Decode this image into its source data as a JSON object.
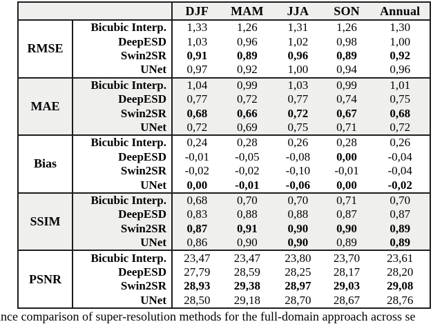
{
  "header": {
    "corner_label": "",
    "columns": [
      "DJF",
      "MAM",
      "JJA",
      "SON",
      "Annual"
    ]
  },
  "chart_data": {
    "type": "table",
    "title": "",
    "columns": [
      "DJF",
      "MAM",
      "JJA",
      "SON",
      "Annual"
    ],
    "metrics": [
      "RMSE",
      "MAE",
      "Bias",
      "SSIM",
      "PSNR"
    ],
    "methods": [
      "Bicubic Interp.",
      "DeepESD",
      "Swin2SR",
      "UNet"
    ]
  },
  "sections": [
    {
      "metric": "RMSE",
      "shaded": false,
      "rows": [
        {
          "method": "Bicubic Interp.",
          "values": [
            "1,33",
            "1,26",
            "1,31",
            "1,26",
            "1,30"
          ],
          "bold": [
            false,
            false,
            false,
            false,
            false
          ]
        },
        {
          "method": "DeepESD",
          "values": [
            "1,03",
            "0,96",
            "1,02",
            "0,98",
            "1,00"
          ],
          "bold": [
            false,
            false,
            false,
            false,
            false
          ]
        },
        {
          "method": "Swin2SR",
          "values": [
            "0,91",
            "0,89",
            "0,96",
            "0,89",
            "0,92"
          ],
          "bold": [
            true,
            true,
            true,
            true,
            true
          ]
        },
        {
          "method": "UNet",
          "values": [
            "0,97",
            "0,92",
            "1,00",
            "0,94",
            "0,96"
          ],
          "bold": [
            false,
            false,
            false,
            false,
            false
          ]
        }
      ]
    },
    {
      "metric": "MAE",
      "shaded": true,
      "rows": [
        {
          "method": "Bicubic Interp.",
          "values": [
            "1,04",
            "0,99",
            "1,03",
            "0,99",
            "1,01"
          ],
          "bold": [
            false,
            false,
            false,
            false,
            false
          ]
        },
        {
          "method": "DeepESD",
          "values": [
            "0,77",
            "0,72",
            "0,77",
            "0,74",
            "0,75"
          ],
          "bold": [
            false,
            false,
            false,
            false,
            false
          ]
        },
        {
          "method": "Swin2SR",
          "values": [
            "0,68",
            "0,66",
            "0,72",
            "0,67",
            "0,68"
          ],
          "bold": [
            true,
            true,
            true,
            true,
            true
          ]
        },
        {
          "method": "UNet",
          "values": [
            "0,72",
            "0,69",
            "0,75",
            "0,71",
            "0,72"
          ],
          "bold": [
            false,
            false,
            false,
            false,
            false
          ]
        }
      ]
    },
    {
      "metric": "Bias",
      "shaded": false,
      "rows": [
        {
          "method": "Bicubic Interp.",
          "values": [
            "0,24",
            "0,28",
            "0,26",
            "0,28",
            "0,26"
          ],
          "bold": [
            false,
            false,
            false,
            false,
            false
          ]
        },
        {
          "method": "DeepESD",
          "values": [
            "-0,01",
            "-0,05",
            "-0,08",
            "0,00",
            "-0,04"
          ],
          "bold": [
            false,
            false,
            false,
            true,
            false
          ]
        },
        {
          "method": "Swin2SR",
          "values": [
            "-0,02",
            "-0,02",
            "-0,10",
            "-0,01",
            "-0,04"
          ],
          "bold": [
            false,
            false,
            false,
            false,
            false
          ]
        },
        {
          "method": "UNet",
          "values": [
            "0,00",
            "-0,01",
            "-0,06",
            "0,00",
            "-0,02"
          ],
          "bold": [
            true,
            true,
            true,
            true,
            true
          ]
        }
      ]
    },
    {
      "metric": "SSIM",
      "shaded": true,
      "rows": [
        {
          "method": "Bicubic Interp.",
          "values": [
            "0,68",
            "0,70",
            "0,70",
            "0,71",
            "0,70"
          ],
          "bold": [
            false,
            false,
            false,
            false,
            false
          ]
        },
        {
          "method": "DeepESD",
          "values": [
            "0,83",
            "0,88",
            "0,88",
            "0,87",
            "0,87"
          ],
          "bold": [
            false,
            false,
            false,
            false,
            false
          ]
        },
        {
          "method": "Swin2SR",
          "values": [
            "0,87",
            "0,91",
            "0,90",
            "0,90",
            "0,89"
          ],
          "bold": [
            true,
            true,
            true,
            true,
            true
          ]
        },
        {
          "method": "UNet",
          "values": [
            "0,86",
            "0,90",
            "0,90",
            "0,89",
            "0,89"
          ],
          "bold": [
            false,
            false,
            true,
            false,
            true
          ]
        }
      ]
    },
    {
      "metric": "PSNR",
      "shaded": false,
      "rows": [
        {
          "method": "Bicubic Interp.",
          "values": [
            "23,47",
            "23,47",
            "23,80",
            "23,70",
            "23,61"
          ],
          "bold": [
            false,
            false,
            false,
            false,
            false
          ]
        },
        {
          "method": "DeepESD",
          "values": [
            "27,79",
            "28,59",
            "28,25",
            "28,17",
            "28,20"
          ],
          "bold": [
            false,
            false,
            false,
            false,
            false
          ]
        },
        {
          "method": "Swin2SR",
          "values": [
            "28,93",
            "29,38",
            "28,97",
            "29,03",
            "29,08"
          ],
          "bold": [
            true,
            true,
            true,
            true,
            true
          ]
        },
        {
          "method": "UNet",
          "values": [
            "28,50",
            "29,18",
            "28,70",
            "28,67",
            "28,76"
          ],
          "bold": [
            false,
            false,
            false,
            false,
            false
          ]
        }
      ]
    }
  ],
  "caption": "ance comparison of super-resolution methods for the full-domain approach across se",
  "colors": {
    "shaded_row_bg": "#efefee",
    "border": "#1c1c1c",
    "text": "#000000",
    "page_bg": "#ffffff"
  }
}
